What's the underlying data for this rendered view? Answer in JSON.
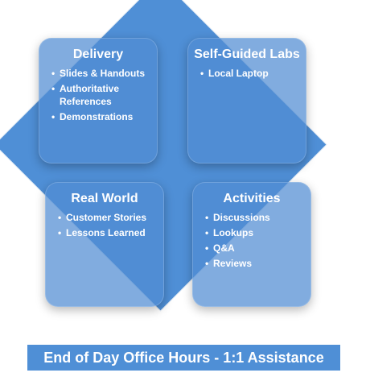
{
  "quadrants": [
    {
      "title": "Delivery",
      "items": [
        "Slides & Handouts",
        "Authoritative References",
        "Demonstrations"
      ]
    },
    {
      "title": "Self-Guided Labs",
      "items": [
        "Local Laptop"
      ]
    },
    {
      "title": "Real World",
      "items": [
        "Customer Stories",
        "Lessons Learned"
      ]
    },
    {
      "title": "Activities",
      "items": [
        "Discussions",
        "Lookups",
        "Q&A",
        "Reviews"
      ]
    }
  ],
  "footer": {
    "text": "End of Day Office Hours - 1:1 Assistance"
  },
  "colors": {
    "diamond": "#4f8fd6",
    "box": "#508cd2",
    "footer": "#4f8fd6",
    "text": "#ffffff"
  }
}
